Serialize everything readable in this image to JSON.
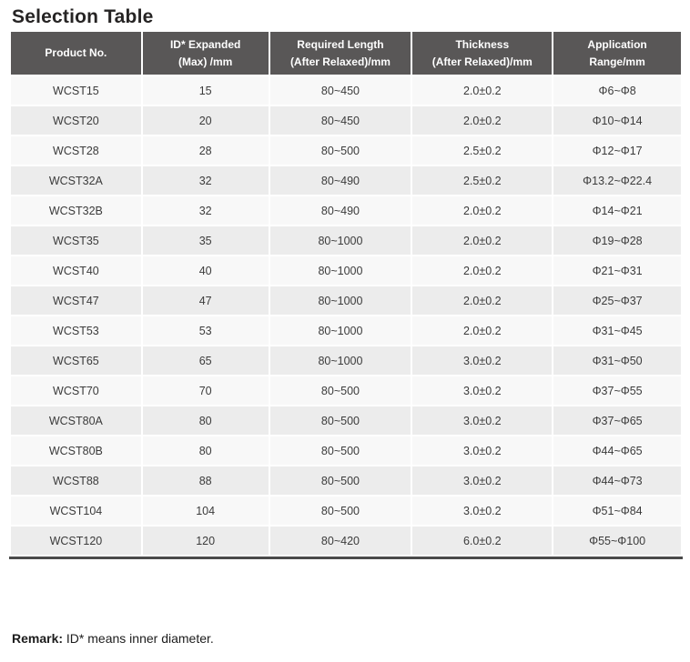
{
  "page": {
    "title": "Selection Table",
    "remark_label": "Remark:",
    "remark_text": "ID* means inner diameter."
  },
  "table": {
    "columns": [
      {
        "label_lines": [
          "Product No."
        ]
      },
      {
        "label_lines": [
          "ID* Expanded",
          "(Max) /mm"
        ]
      },
      {
        "label_lines": [
          "Required Length",
          "(After Relaxed)/mm"
        ]
      },
      {
        "label_lines": [
          "Thickness",
          "(After Relaxed)/mm"
        ]
      },
      {
        "label_lines": [
          "Application",
          "Range/mm"
        ]
      }
    ],
    "rows": [
      [
        "WCST15",
        "15",
        "80~450",
        "2.0±0.2",
        "Φ6~Φ8"
      ],
      [
        "WCST20",
        "20",
        "80~450",
        "2.0±0.2",
        "Φ10~Φ14"
      ],
      [
        "WCST28",
        "28",
        "80~500",
        "2.5±0.2",
        "Φ12~Φ17"
      ],
      [
        "WCST32A",
        "32",
        "80~490",
        "2.5±0.2",
        "Φ13.2~Φ22.4"
      ],
      [
        "WCST32B",
        "32",
        "80~490",
        "2.0±0.2",
        "Φ14~Φ21"
      ],
      [
        "WCST35",
        "35",
        "80~1000",
        "2.0±0.2",
        "Φ19~Φ28"
      ],
      [
        "WCST40",
        "40",
        "80~1000",
        "2.0±0.2",
        "Φ21~Φ31"
      ],
      [
        "WCST47",
        "47",
        "80~1000",
        "2.0±0.2",
        "Φ25~Φ37"
      ],
      [
        "WCST53",
        "53",
        "80~1000",
        "2.0±0.2",
        "Φ31~Φ45"
      ],
      [
        "WCST65",
        "65",
        "80~1000",
        "3.0±0.2",
        "Φ31~Φ50"
      ],
      [
        "WCST70",
        "70",
        "80~500",
        "3.0±0.2",
        "Φ37~Φ55"
      ],
      [
        "WCST80A",
        "80",
        "80~500",
        "3.0±0.2",
        "Φ37~Φ65"
      ],
      [
        "WCST80B",
        "80",
        "80~500",
        "3.0±0.2",
        "Φ44~Φ65"
      ],
      [
        "WCST88",
        "88",
        "80~500",
        "3.0±0.2",
        "Φ44~Φ73"
      ],
      [
        "WCST104",
        "104",
        "80~500",
        "3.0±0.2",
        "Φ51~Φ84"
      ],
      [
        "WCST120",
        "120",
        "80~420",
        "6.0±0.2",
        "Φ55~Φ100"
      ]
    ],
    "colors": {
      "header_bg": "#595757",
      "header_text": "#ffffff",
      "row_odd_bg": "#f8f8f8",
      "row_even_bg": "#ececec",
      "cell_text": "#3b3b3b",
      "bottom_border": "#4a4a4a"
    }
  }
}
